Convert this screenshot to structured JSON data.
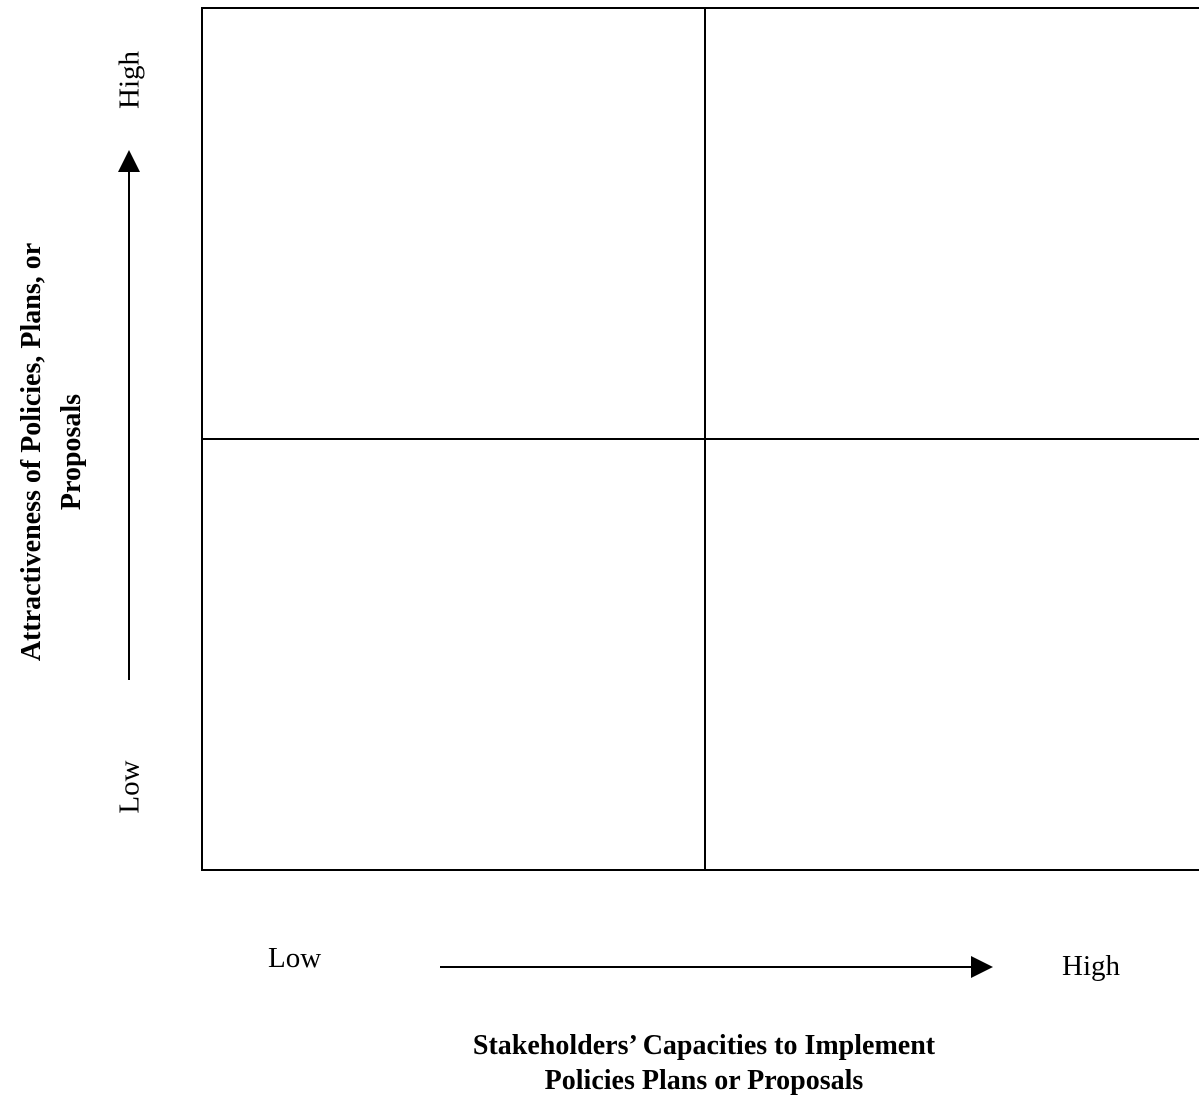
{
  "diagram": {
    "y_axis": {
      "title_line1": "Attractiveness of Policies, Plans, or",
      "title_line2": "Proposals",
      "low_label": "Low",
      "high_label": "High"
    },
    "x_axis": {
      "title_line1": "Stakeholders’ Capacities to Implement",
      "title_line2": "Policies Plans or Proposals",
      "low_label": "Low",
      "high_label": "High"
    },
    "quadrants": 4,
    "line_color": "#000000"
  }
}
